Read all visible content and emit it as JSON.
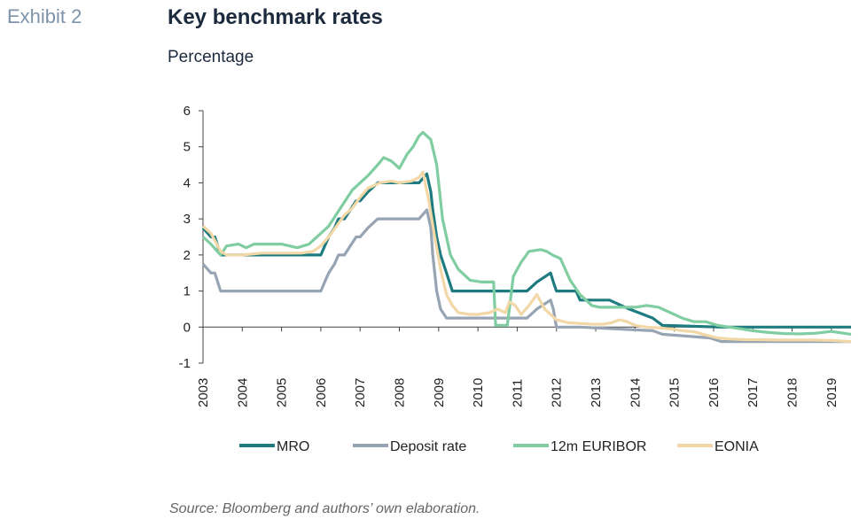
{
  "header": {
    "exhibit": "Exhibit 2",
    "title": "Key benchmark rates",
    "subtitle": "Percentage"
  },
  "footer": {
    "source": "Source: Bloomberg and authors’ own elaboration."
  },
  "chart_data": {
    "type": "line",
    "xlabel": "",
    "ylabel": "",
    "ylim": [
      -1,
      6
    ],
    "yticks": [
      "6",
      "5",
      "4",
      "3",
      "2",
      "1",
      "0",
      "-1"
    ],
    "xlim": [
      2003,
      2019.5
    ],
    "xticks": [
      "2003",
      "2004",
      "2005",
      "2006",
      "2007",
      "2008",
      "2009",
      "2010",
      "2011",
      "2012",
      "2013",
      "2014",
      "2015",
      "2016",
      "2017",
      "2018",
      "2019"
    ],
    "grid": false,
    "legend_position": "bottom",
    "series": [
      {
        "name": "MRO",
        "color": "#1e7b80",
        "x": [
          2003.0,
          2003.2,
          2003.3,
          2003.45,
          2006.0,
          2006.1,
          2006.2,
          2006.35,
          2006.45,
          2006.6,
          2006.75,
          2006.9,
          2007.0,
          2007.2,
          2007.45,
          2008.5,
          2008.7,
          2008.8,
          2008.85,
          2008.95,
          2009.05,
          2009.2,
          2009.35,
          2011.25,
          2011.5,
          2011.85,
          2011.92,
          2012.0,
          2012.5,
          2012.6,
          2013.35,
          2013.85,
          2014.45,
          2014.7,
          2016.2,
          2019.5
        ],
        "y": [
          2.75,
          2.5,
          2.5,
          2.0,
          2.0,
          2.25,
          2.5,
          2.75,
          3.0,
          3.0,
          3.25,
          3.5,
          3.5,
          3.75,
          4.0,
          4.0,
          4.25,
          3.75,
          3.25,
          2.5,
          2.0,
          1.5,
          1.0,
          1.0,
          1.25,
          1.5,
          1.25,
          1.0,
          1.0,
          0.75,
          0.75,
          0.5,
          0.25,
          0.05,
          0.0,
          0.0
        ]
      },
      {
        "name": "Deposit rate",
        "color": "#97a4b4",
        "x": [
          2003.0,
          2003.2,
          2003.3,
          2003.45,
          2006.0,
          2006.1,
          2006.2,
          2006.35,
          2006.45,
          2006.6,
          2006.75,
          2006.9,
          2007.0,
          2007.2,
          2007.45,
          2008.5,
          2008.7,
          2008.8,
          2008.85,
          2008.95,
          2009.05,
          2009.2,
          2009.35,
          2011.25,
          2011.5,
          2011.85,
          2011.92,
          2012.0,
          2012.5,
          2012.6,
          2014.45,
          2014.7,
          2015.9,
          2016.2,
          2019.5
        ],
        "y": [
          1.75,
          1.5,
          1.5,
          1.0,
          1.0,
          1.25,
          1.5,
          1.75,
          2.0,
          2.0,
          2.25,
          2.5,
          2.5,
          2.75,
          3.0,
          3.0,
          3.25,
          2.75,
          2.0,
          1.0,
          0.5,
          0.25,
          0.25,
          0.25,
          0.5,
          0.75,
          0.5,
          0.0,
          0.0,
          0.0,
          -0.1,
          -0.2,
          -0.3,
          -0.4,
          -0.4
        ]
      },
      {
        "name": "12m EURIBOR",
        "color": "#7fcda0",
        "x": [
          2003.0,
          2003.2,
          2003.45,
          2003.6,
          2003.9,
          2004.1,
          2004.3,
          2004.7,
          2005.0,
          2005.4,
          2005.7,
          2005.9,
          2006.2,
          2006.5,
          2006.8,
          2007.0,
          2007.2,
          2007.45,
          2007.6,
          2007.8,
          2008.0,
          2008.2,
          2008.35,
          2008.5,
          2008.6,
          2008.8,
          2008.95,
          2009.1,
          2009.3,
          2009.5,
          2009.8,
          2010.1,
          2010.4,
          2010.45,
          2010.75,
          2010.9,
          2011.0,
          2011.1,
          2011.3,
          2011.6,
          2011.75,
          2011.9,
          2012.1,
          2012.35,
          2012.6,
          2012.9,
          2013.1,
          2013.4,
          2013.7,
          2014.0,
          2014.3,
          2014.6,
          2014.9,
          2015.2,
          2015.5,
          2015.8,
          2016.1,
          2016.4,
          2016.7,
          2017.0,
          2017.4,
          2017.8,
          2018.2,
          2018.6,
          2019.0,
          2019.5
        ],
        "y": [
          2.5,
          2.3,
          2.0,
          2.25,
          2.3,
          2.2,
          2.3,
          2.3,
          2.3,
          2.2,
          2.3,
          2.5,
          2.8,
          3.3,
          3.8,
          4.0,
          4.2,
          4.5,
          4.7,
          4.6,
          4.4,
          4.8,
          5.0,
          5.3,
          5.4,
          5.2,
          4.5,
          3.0,
          2.0,
          1.6,
          1.3,
          1.25,
          1.25,
          0.05,
          0.05,
          1.4,
          1.6,
          1.8,
          2.1,
          2.15,
          2.1,
          2.0,
          1.9,
          1.3,
          0.9,
          0.6,
          0.55,
          0.55,
          0.55,
          0.55,
          0.6,
          0.55,
          0.4,
          0.25,
          0.15,
          0.15,
          0.05,
          0.0,
          -0.05,
          -0.1,
          -0.15,
          -0.18,
          -0.19,
          -0.17,
          -0.12,
          -0.2
        ]
      },
      {
        "name": "EONIA",
        "color": "#f2d7a7",
        "x": [
          2003.0,
          2003.2,
          2003.45,
          2003.6,
          2004.0,
          2004.5,
          2005.0,
          2005.5,
          2005.8,
          2006.0,
          2006.2,
          2006.4,
          2006.6,
          2006.8,
          2007.0,
          2007.2,
          2007.5,
          2007.8,
          2008.0,
          2008.3,
          2008.5,
          2008.6,
          2008.75,
          2008.9,
          2009.05,
          2009.2,
          2009.35,
          2009.5,
          2009.8,
          2010.0,
          2010.3,
          2010.5,
          2010.7,
          2010.8,
          2010.95,
          2011.1,
          2011.3,
          2011.5,
          2011.7,
          2011.85,
          2012.0,
          2012.3,
          2012.6,
          2012.9,
          2013.2,
          2013.4,
          2013.6,
          2013.8,
          2014.0,
          2014.3,
          2014.6,
          2014.9,
          2015.2,
          2015.5,
          2015.8,
          2016.1,
          2016.4,
          2016.8,
          2017.2,
          2017.6,
          2018.0,
          2018.5,
          2019.0,
          2019.5
        ],
        "y": [
          2.8,
          2.6,
          2.1,
          2.0,
          2.0,
          2.05,
          2.05,
          2.05,
          2.1,
          2.25,
          2.5,
          2.8,
          3.1,
          3.3,
          3.6,
          3.85,
          4.0,
          4.05,
          4.0,
          4.05,
          4.15,
          4.3,
          3.5,
          2.5,
          1.6,
          0.9,
          0.6,
          0.4,
          0.35,
          0.35,
          0.4,
          0.5,
          0.4,
          0.7,
          0.6,
          0.35,
          0.6,
          0.9,
          0.5,
          0.35,
          0.2,
          0.12,
          0.1,
          0.08,
          0.08,
          0.12,
          0.2,
          0.15,
          0.05,
          0.0,
          -0.02,
          -0.05,
          -0.1,
          -0.13,
          -0.22,
          -0.3,
          -0.33,
          -0.35,
          -0.35,
          -0.36,
          -0.36,
          -0.36,
          -0.37,
          -0.4
        ]
      }
    ]
  }
}
